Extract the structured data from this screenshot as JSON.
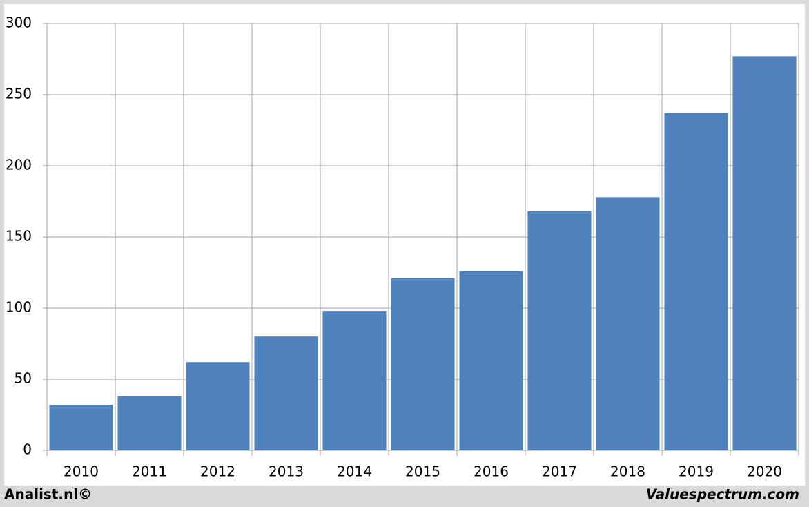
{
  "chart_data": {
    "type": "bar",
    "categories": [
      "2010",
      "2011",
      "2012",
      "2013",
      "2014",
      "2015",
      "2016",
      "2017",
      "2018",
      "2019",
      "2020"
    ],
    "values": [
      32,
      38,
      62,
      80,
      98,
      121,
      126,
      168,
      178,
      237,
      277
    ],
    "color": "#4f81bd",
    "ylim": [
      0,
      300
    ],
    "yticks": [
      0,
      50,
      100,
      150,
      200,
      250,
      300
    ],
    "grid": true,
    "footer_left": "Analist.nl©",
    "footer_right": "Valuespectrum.com"
  }
}
